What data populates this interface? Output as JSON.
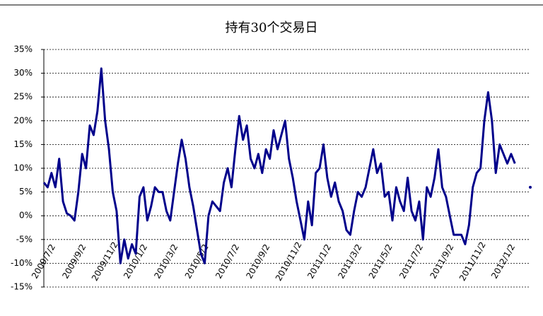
{
  "chart_data": {
    "type": "line",
    "title": "持有30个交易日",
    "categories": [
      "2009/7/2",
      null,
      null,
      null,
      null,
      null,
      null,
      null,
      "2009/9/2",
      null,
      null,
      null,
      null,
      null,
      null,
      null,
      "2009/11/2",
      null,
      null,
      null,
      null,
      null,
      null,
      null,
      "2010/1/2",
      null,
      null,
      null,
      null,
      null,
      null,
      null,
      "2010/3/2",
      null,
      null,
      null,
      null,
      null,
      null,
      null,
      "2010/5/2",
      null,
      null,
      null,
      null,
      null,
      null,
      null,
      "2010/7/2",
      null,
      null,
      null,
      null,
      null,
      null,
      null,
      "2010/9/2",
      null,
      null,
      null,
      null,
      null,
      null,
      null,
      "2010/11/2",
      null,
      null,
      null,
      null,
      null,
      null,
      null,
      "2011/1/2",
      null,
      null,
      null,
      null,
      null,
      null,
      null,
      "2011/3/2",
      null,
      null,
      null,
      null,
      null,
      null,
      null,
      "2011/5/2",
      null,
      null,
      null,
      null,
      null,
      null,
      null,
      "2011/7/2",
      null,
      null,
      null,
      null,
      null,
      null,
      null,
      "2011/9/2",
      null,
      null,
      null,
      null,
      null,
      null,
      null,
      "2011/11/2",
      null,
      null,
      null,
      null,
      null,
      null,
      null,
      "2012/1/2",
      null,
      null,
      null,
      null,
      null,
      null,
      null
    ],
    "series": [
      {
        "color": "#00008b",
        "values": [
          7,
          6,
          9,
          6,
          12,
          3,
          0.5,
          0,
          -1,
          5,
          13,
          10,
          19,
          17,
          22,
          31,
          20,
          14,
          5,
          1,
          -10,
          -5,
          -9,
          -6,
          -8,
          4,
          6,
          -1,
          2,
          6,
          5,
          5,
          1,
          -1,
          5,
          11,
          16,
          12,
          6,
          2,
          -3,
          -8,
          -10,
          0,
          3,
          2,
          1,
          7,
          10,
          6,
          14,
          21,
          16,
          19,
          12,
          10,
          13,
          9,
          14,
          12,
          18,
          14,
          17,
          20,
          12,
          8,
          3,
          -1,
          -5,
          3,
          -2,
          9,
          10,
          15,
          8,
          4,
          7,
          3,
          1,
          -3,
          -4,
          1,
          5,
          4,
          6,
          10,
          14,
          9,
          11,
          4,
          5,
          -1,
          6,
          3,
          1,
          8,
          1,
          -1,
          3,
          -5,
          6,
          4,
          8,
          14,
          6,
          4,
          0,
          -4,
          -4,
          -4,
          -6,
          -2,
          6,
          9,
          10,
          20,
          26,
          20,
          9,
          15,
          13,
          11,
          13,
          11,
          null,
          null,
          null,
          6
        ]
      }
    ],
    "ylim": [
      -15,
      35
    ],
    "yticks": [
      {
        "value": -15,
        "label": "-15%"
      },
      {
        "value": -10,
        "label": "-10%"
      },
      {
        "value": -5,
        "label": "-5%"
      },
      {
        "value": 0,
        "label": "0%"
      },
      {
        "value": 5,
        "label": "5%"
      },
      {
        "value": 10,
        "label": "10%"
      },
      {
        "value": 15,
        "label": "15%"
      },
      {
        "value": 20,
        "label": "20%"
      },
      {
        "value": 25,
        "label": "25%"
      },
      {
        "value": 30,
        "label": "30%"
      },
      {
        "value": 35,
        "label": "35%"
      }
    ],
    "grid": true
  }
}
